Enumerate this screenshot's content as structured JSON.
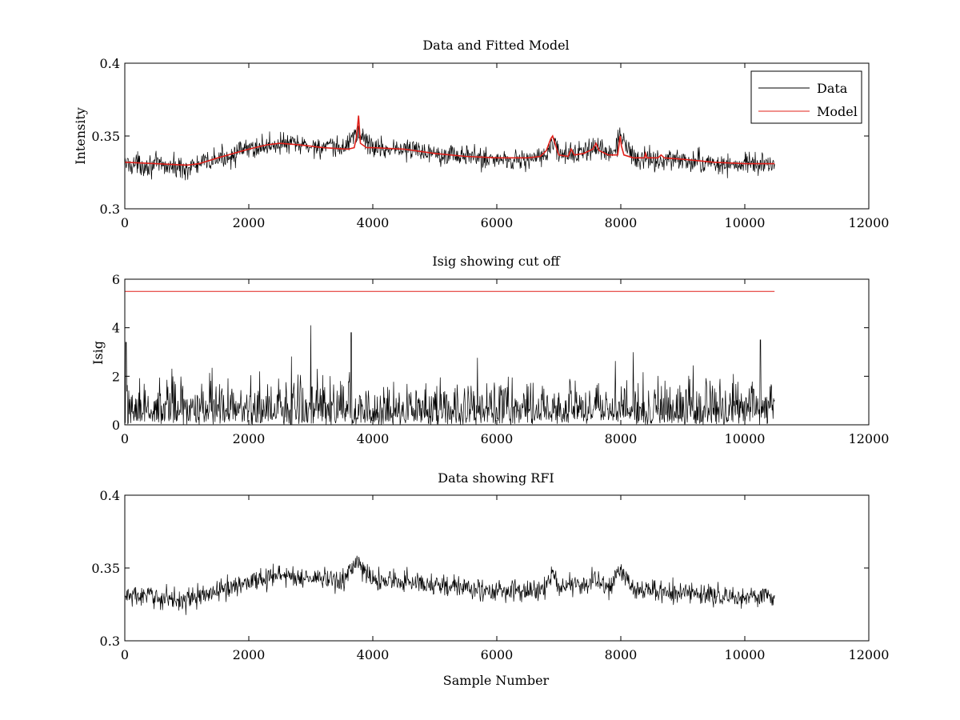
{
  "chart_data": [
    {
      "type": "line",
      "title": "Data and Fitted Model",
      "xlabel": "",
      "ylabel": "Intensity",
      "xlim": [
        0,
        12000
      ],
      "ylim": [
        0.3,
        0.4
      ],
      "xticks": [
        "0",
        "2000",
        "4000",
        "6000",
        "8000",
        "10000",
        "12000"
      ],
      "yticks": [
        "0.3",
        "0.35",
        "0.4"
      ],
      "legend": {
        "position": "top-right",
        "entries": [
          "Data",
          "Model"
        ]
      },
      "grid": false,
      "series": [
        {
          "name": "Data",
          "color": "#000000",
          "noisy": true,
          "x": [
            0,
            500,
            1000,
            1500,
            2000,
            2500,
            3000,
            3500,
            3750,
            4000,
            4500,
            5000,
            5500,
            6000,
            6500,
            6800,
            6900,
            7000,
            7200,
            7400,
            7600,
            7800,
            8000,
            8200,
            8500,
            9000,
            9500,
            10000,
            10480
          ],
          "y": [
            0.331,
            0.33,
            0.328,
            0.334,
            0.341,
            0.345,
            0.343,
            0.341,
            0.353,
            0.342,
            0.341,
            0.339,
            0.336,
            0.334,
            0.334,
            0.336,
            0.347,
            0.337,
            0.338,
            0.339,
            0.342,
            0.336,
            0.349,
            0.335,
            0.334,
            0.333,
            0.331,
            0.33,
            0.331
          ]
        },
        {
          "name": "Model",
          "color": "#e0201a",
          "noisy": false,
          "x": [
            0,
            500,
            1000,
            1200,
            1500,
            2000,
            2300,
            2500,
            2800,
            3200,
            3600,
            3700,
            3740,
            3770,
            3800,
            3900,
            4000,
            4500,
            5000,
            5500,
            6000,
            6500,
            6700,
            6800,
            6870,
            6900,
            6930,
            7000,
            7150,
            7200,
            7250,
            7400,
            7550,
            7600,
            7650,
            7800,
            7950,
            7990,
            8010,
            8050,
            8200,
            8380,
            8400,
            8420,
            8600,
            8650,
            8700,
            9000,
            9500,
            10000,
            10480
          ],
          "y": [
            0.332,
            0.331,
            0.33,
            0.331,
            0.335,
            0.341,
            0.344,
            0.345,
            0.344,
            0.342,
            0.341,
            0.342,
            0.35,
            0.364,
            0.345,
            0.342,
            0.342,
            0.341,
            0.338,
            0.336,
            0.335,
            0.335,
            0.336,
            0.34,
            0.348,
            0.35,
            0.346,
            0.337,
            0.336,
            0.341,
            0.337,
            0.338,
            0.341,
            0.345,
            0.34,
            0.337,
            0.337,
            0.35,
            0.343,
            0.337,
            0.335,
            0.335,
            0.338,
            0.335,
            0.335,
            0.337,
            0.335,
            0.334,
            0.332,
            0.331,
            0.331
          ]
        }
      ]
    },
    {
      "type": "line",
      "title": "Isig showing cut off",
      "xlabel": "",
      "ylabel": "Isig",
      "xlim": [
        0,
        12000
      ],
      "ylim": [
        0,
        6
      ],
      "xticks": [
        "0",
        "2000",
        "4000",
        "6000",
        "8000",
        "10000",
        "12000"
      ],
      "yticks": [
        "0",
        "2",
        "4",
        "6"
      ],
      "grid": false,
      "series": [
        {
          "name": "Isig",
          "color": "#000000",
          "noisy": true,
          "x": [
            0,
            500,
            1000,
            1500,
            2000,
            2500,
            3000,
            3500,
            4000,
            4500,
            5000,
            5500,
            6000,
            6500,
            7000,
            7500,
            8000,
            8500,
            9000,
            9500,
            10000,
            10480
          ],
          "y": [
            0.8,
            0.8,
            0.8,
            0.8,
            0.8,
            0.8,
            0.8,
            0.8,
            0.8,
            0.8,
            0.8,
            0.8,
            0.8,
            0.8,
            0.8,
            0.8,
            0.8,
            0.8,
            0.8,
            0.8,
            0.8,
            0.8
          ],
          "peaks": [
            {
              "x": 3000,
              "y": 4.1
            },
            {
              "x": 3650,
              "y": 3.8
            },
            {
              "x": 10250,
              "y": 3.5
            },
            {
              "x": 20,
              "y": 3.4
            }
          ]
        },
        {
          "name": "Cut off",
          "color": "#e0201a",
          "noisy": false,
          "x": [
            0,
            10480
          ],
          "y": [
            5.5,
            5.5
          ]
        }
      ]
    },
    {
      "type": "line",
      "title": "Data showing RFI",
      "xlabel": "Sample Number",
      "ylabel": "",
      "xlim": [
        0,
        12000
      ],
      "ylim": [
        0.3,
        0.4
      ],
      "xticks": [
        "0",
        "2000",
        "4000",
        "6000",
        "8000",
        "10000",
        "12000"
      ],
      "yticks": [
        "0.3",
        "0.35",
        "0.4"
      ],
      "grid": false,
      "series": [
        {
          "name": "Data",
          "color": "#000000",
          "noisy": true,
          "x": [
            0,
            500,
            1000,
            1500,
            2000,
            2500,
            3000,
            3500,
            3750,
            4000,
            4500,
            5000,
            5500,
            6000,
            6500,
            6800,
            6900,
            7000,
            7200,
            7400,
            7600,
            7800,
            8000,
            8200,
            8500,
            9000,
            9500,
            10000,
            10480
          ],
          "y": [
            0.331,
            0.33,
            0.328,
            0.334,
            0.341,
            0.345,
            0.343,
            0.341,
            0.353,
            0.342,
            0.341,
            0.339,
            0.336,
            0.334,
            0.334,
            0.336,
            0.347,
            0.337,
            0.338,
            0.339,
            0.342,
            0.336,
            0.349,
            0.335,
            0.334,
            0.333,
            0.331,
            0.33,
            0.331
          ]
        }
      ]
    }
  ]
}
